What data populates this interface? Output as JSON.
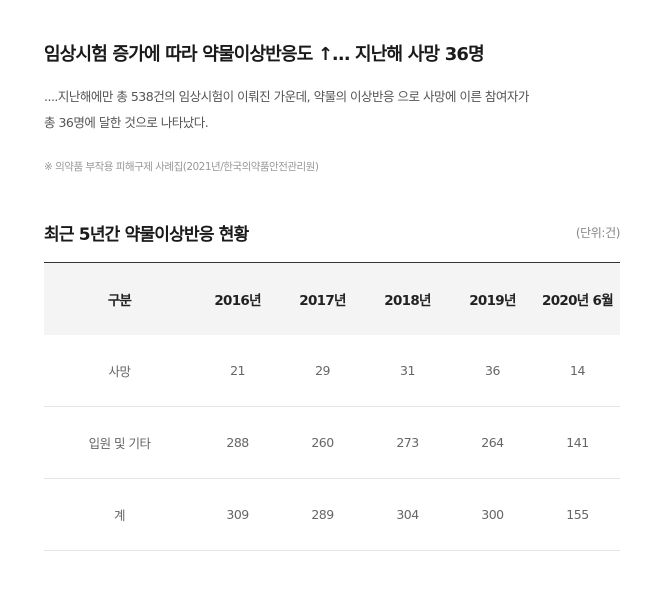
{
  "headline": "임상시험 증가에 따라 약물이상반응도 ↑…  지난해 사망 36명",
  "lead": {
    "line1": "....지난해에만 총 538건의 임상시험이 이뤄진 가운데, 약물의 이상반응 으로 사망에 이른 참여자가",
    "line2": "총 36명에 달한 것으로 나타났다."
  },
  "source": "※ 의약품 부작용 피해구제 사례집(2021년/한국의약품안전관리원)",
  "table": {
    "title": "최근 5년간 약물이상반응 현황",
    "unit": "(단위:건)",
    "headers": [
      "구분",
      "2016년",
      "2017년",
      "2018년",
      "2019년",
      "2020년 6월"
    ],
    "rows": [
      [
        "사망",
        "21",
        "29",
        "31",
        "36",
        "14"
      ],
      [
        "입원 및 기타",
        "288",
        "260",
        "273",
        "264",
        "141"
      ],
      [
        "계",
        "309",
        "289",
        "304",
        "300",
        "155"
      ]
    ]
  }
}
